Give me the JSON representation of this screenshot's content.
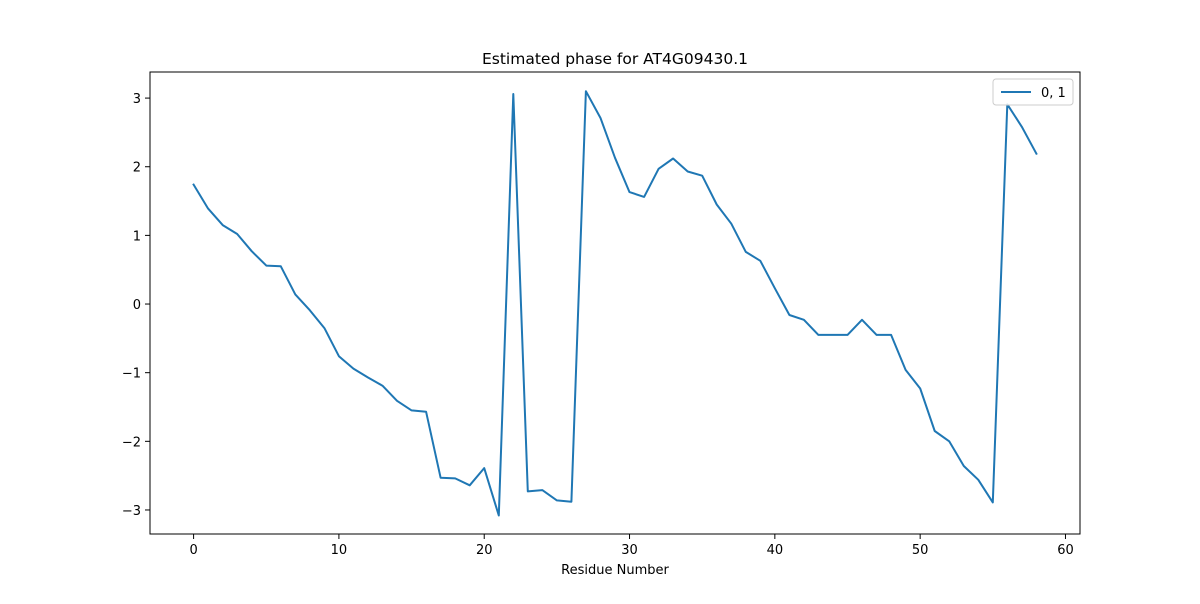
{
  "chart_data": {
    "type": "line",
    "title": "Estimated phase for AT4G09430.1",
    "xlabel": "Residue Number",
    "ylabel": "",
    "xlim": [
      -3,
      61
    ],
    "ylim": [
      -3.35,
      3.38
    ],
    "xticks": [
      0,
      10,
      20,
      30,
      40,
      50,
      60
    ],
    "yticks": [
      -3,
      -2,
      -1,
      0,
      1,
      2,
      3
    ],
    "xtick_labels": [
      "0",
      "10",
      "20",
      "30",
      "40",
      "50",
      "60"
    ],
    "ytick_labels": [
      "−3",
      "−2",
      "−1",
      "0",
      "1",
      "2",
      "3"
    ],
    "grid": false,
    "legend_position": "top-right",
    "series": [
      {
        "name": "0, 1",
        "color": "#1f77b4",
        "x": [
          0,
          1,
          2,
          3,
          4,
          5,
          6,
          7,
          8,
          9,
          10,
          11,
          12,
          13,
          14,
          15,
          16,
          17,
          18,
          19,
          20,
          21,
          22,
          23,
          24,
          25,
          26,
          27,
          28,
          29,
          30,
          31,
          32,
          33,
          34,
          35,
          36,
          37,
          38,
          39,
          40,
          41,
          42,
          43,
          44,
          45,
          46,
          47,
          48,
          49,
          50,
          51,
          52,
          53,
          54,
          55,
          56,
          57,
          58
        ],
        "values": [
          1.74,
          1.39,
          1.15,
          1.02,
          0.77,
          0.56,
          0.55,
          0.14,
          -0.09,
          -0.35,
          -0.76,
          -0.94,
          -1.07,
          -1.19,
          -1.41,
          -1.55,
          -1.57,
          -2.53,
          -2.54,
          -2.64,
          -2.39,
          -3.08,
          3.06,
          -2.73,
          -2.71,
          -2.86,
          -2.88,
          3.1,
          2.71,
          2.13,
          1.63,
          1.56,
          1.97,
          2.12,
          1.93,
          1.87,
          1.45,
          1.17,
          0.76,
          0.63,
          0.23,
          -0.16,
          -0.23,
          -0.45,
          -0.45,
          -0.45,
          -0.23,
          -0.45,
          -0.45,
          -0.96,
          -1.23,
          -1.85,
          -2.0,
          -2.36,
          -2.56,
          -2.89,
          2.91,
          2.58,
          2.19
        ]
      }
    ]
  }
}
